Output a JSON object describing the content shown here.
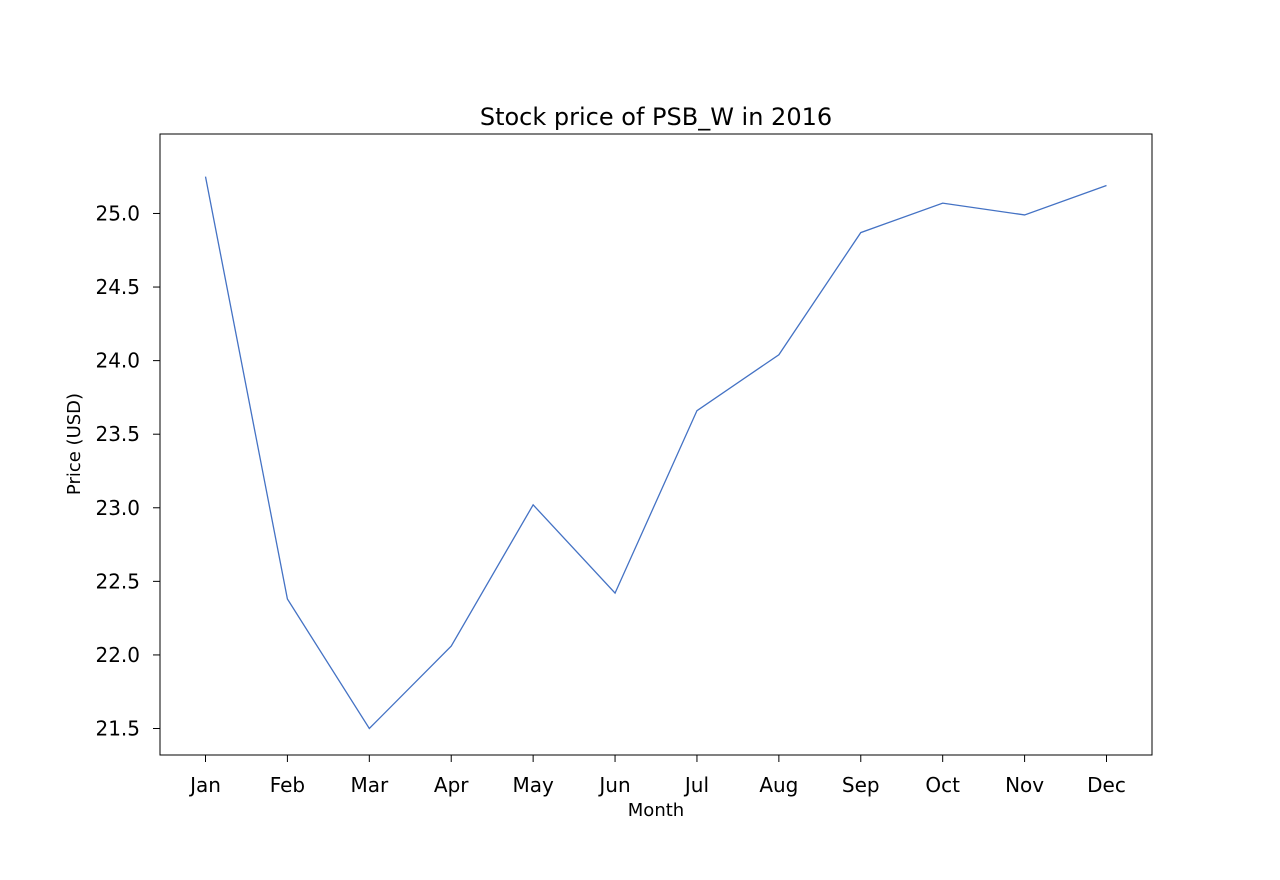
{
  "chart_data": {
    "type": "line",
    "title": "Stock price of PSB_W in 2016",
    "xlabel": "Month",
    "ylabel": "Price (USD)",
    "categories": [
      "Jan",
      "Feb",
      "Mar",
      "Apr",
      "May",
      "Jun",
      "Jul",
      "Aug",
      "Sep",
      "Oct",
      "Nov",
      "Dec"
    ],
    "series": [
      {
        "values": [
          25.25,
          22.38,
          21.5,
          22.06,
          23.02,
          22.42,
          23.66,
          24.04,
          24.87,
          25.07,
          24.99,
          25.19
        ]
      }
    ],
    "yticks": [
      "21.5",
      "22.0",
      "22.5",
      "23.0",
      "23.5",
      "24.0",
      "24.5",
      "25.0"
    ],
    "ylim": [
      21.32,
      25.54
    ],
    "grid": false,
    "colors": {
      "line": "#4472c4",
      "axes": "#000000",
      "background": "#ffffff"
    }
  }
}
